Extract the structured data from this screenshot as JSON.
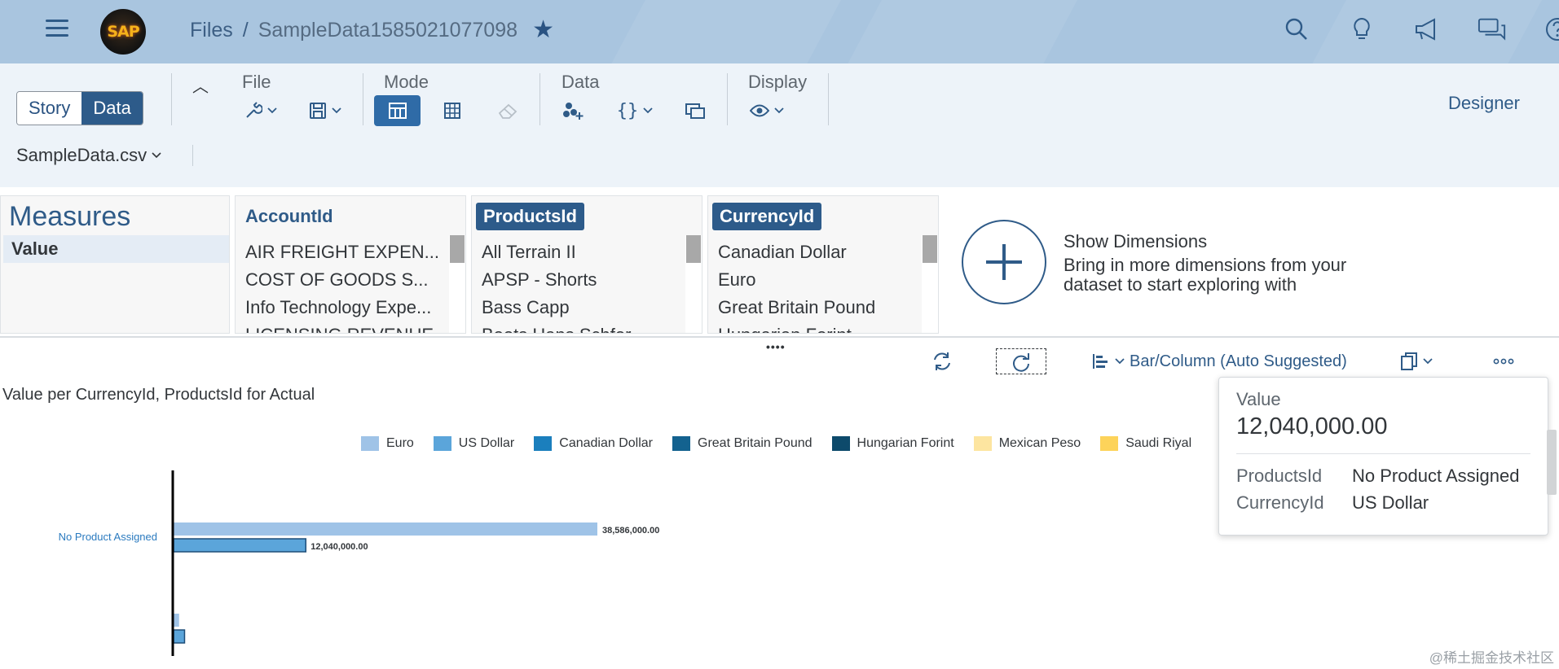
{
  "shell": {
    "logo_text": "SAP",
    "breadcrumb_root": "Files",
    "breadcrumb_sep": "/",
    "breadcrumb_current": "SampleData1585021077098",
    "favorite_icon": "star-icon",
    "actions": [
      "search-icon",
      "lightbulb-icon",
      "megaphone-icon",
      "feedback-icon",
      "help-icon"
    ]
  },
  "toolbar": {
    "story_label": "Story",
    "data_label": "Data",
    "groups": {
      "file": "File",
      "mode": "Mode",
      "data": "Data",
      "display": "Display"
    },
    "designer_label": "Designer",
    "source": "SampleData.csv"
  },
  "panels": {
    "measures": {
      "title": "Measures",
      "items": [
        "Value"
      ]
    },
    "account": {
      "title": "AccountId",
      "items": [
        "AIR FREIGHT EXPEN...",
        "COST OF GOODS S...",
        "Info Technology Expe...",
        "LICENSING REVENUE"
      ]
    },
    "products": {
      "title": "ProductsId",
      "items": [
        "All Terrain II",
        "APSP - Shorts",
        "Bass Capp",
        "Boots Hans Schfor"
      ]
    },
    "currency": {
      "title": "CurrencyId",
      "items": [
        "Canadian Dollar",
        "Euro",
        "Great Britain Pound",
        "Hungarian Forint"
      ]
    },
    "show_dimensions": {
      "title": "Show Dimensions",
      "subtitle": "Bring in more dimensions from your dataset to start exploring with"
    }
  },
  "chart_toolbar": {
    "chart_type": "Bar/Column (Auto Suggested)",
    "grip": "••••"
  },
  "chart_data": {
    "type": "bar",
    "orientation": "horizontal",
    "title": "Value per CurrencyId, ProductsId for Actual",
    "legend_position": "top",
    "legend": [
      {
        "name": "Euro",
        "color": "#9fc3e7"
      },
      {
        "name": "US Dollar",
        "color": "#5ba5da"
      },
      {
        "name": "Canadian Dollar",
        "color": "#1b7fbd"
      },
      {
        "name": "Great Britain Pound",
        "color": "#13628f"
      },
      {
        "name": "Hungarian Forint",
        "color": "#0d4a6b"
      },
      {
        "name": "Mexican Peso",
        "color": "#fde5a0"
      },
      {
        "name": "Saudi Riyal",
        "color": "#fdd35a"
      }
    ],
    "categories": [
      {
        "label": "No Product Assigned",
        "bars": [
          {
            "series": "Euro",
            "value": 38586000,
            "label": "38,586,000.00"
          },
          {
            "series": "US Dollar",
            "value": 12040000,
            "label": "12,040,000.00"
          }
        ]
      },
      {
        "label": "",
        "bars": [
          {
            "series": "Euro",
            "value": 500000,
            "label": ""
          },
          {
            "series": "US Dollar",
            "value": 1000000,
            "label": ""
          }
        ]
      }
    ],
    "x_max": 38586000,
    "grid": false
  },
  "tooltip": {
    "measure_label": "Value",
    "measure_value": "12,040,000.00",
    "rows": [
      {
        "key": "ProductsId",
        "value": "No Product Assigned"
      },
      {
        "key": "CurrencyId",
        "value": "US Dollar"
      }
    ]
  },
  "watermark": "@稀土掘金技术社区"
}
